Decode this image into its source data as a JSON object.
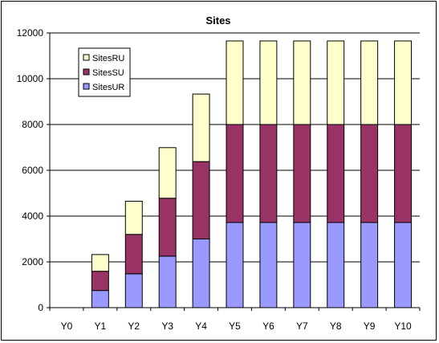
{
  "chart_data": {
    "type": "bar",
    "stacked": true,
    "title": "Sites",
    "xlabel": "",
    "ylabel": "",
    "categories": [
      "Y0",
      "Y1",
      "Y2",
      "Y3",
      "Y4",
      "Y5",
      "Y6",
      "Y7",
      "Y8",
      "Y9",
      "Y10"
    ],
    "series": [
      {
        "name": "SitesUR",
        "color": "#9999ff",
        "values": [
          0,
          750,
          1480,
          2250,
          3000,
          3720,
          3720,
          3720,
          3720,
          3720,
          3720
        ]
      },
      {
        "name": "SitesSU",
        "color": "#993366",
        "values": [
          0,
          840,
          1720,
          2530,
          3380,
          4280,
          4280,
          4280,
          4280,
          4280,
          4280
        ]
      },
      {
        "name": "SitesRU",
        "color": "#ffffcc",
        "values": [
          0,
          730,
          1450,
          2210,
          2950,
          3650,
          3650,
          3650,
          3650,
          3650,
          3650
        ]
      }
    ],
    "ylim": [
      0,
      12000
    ],
    "yticks": [
      0,
      2000,
      4000,
      6000,
      8000,
      10000,
      12000
    ],
    "grid": true,
    "legend_position": "top-left",
    "legend_order": [
      "SitesRU",
      "SitesSU",
      "SitesUR"
    ]
  }
}
